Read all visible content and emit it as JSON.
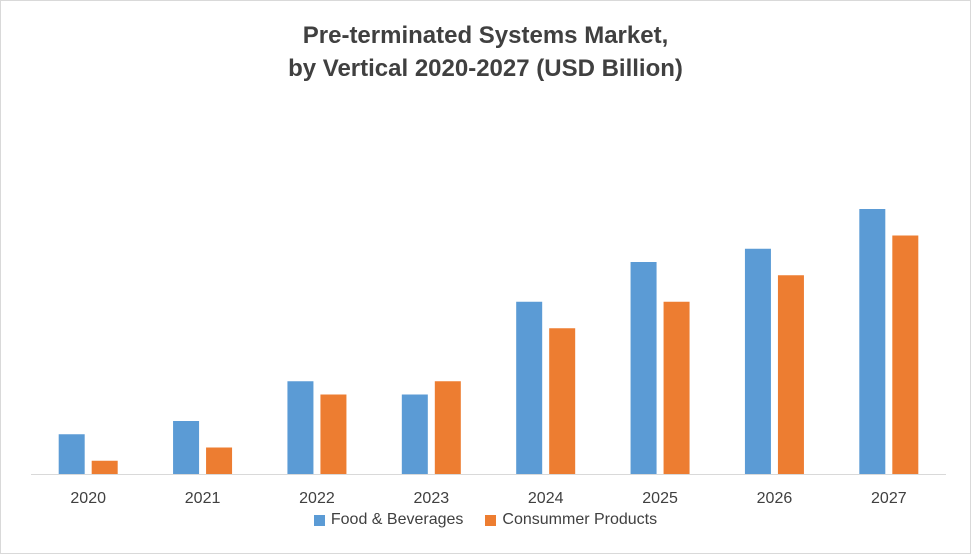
{
  "chart_data": {
    "type": "bar",
    "title_line1": "Pre-terminated Systems Market,",
    "title_line2": "by Vertical 2020-2027 (USD Billion)",
    "xlabel": "",
    "ylabel": "",
    "categories": [
      "2020",
      "2021",
      "2022",
      "2023",
      "2024",
      "2025",
      "2026",
      "2027"
    ],
    "ylim": [
      0,
      20
    ],
    "y_axis_visible": false,
    "grid": false,
    "legend_position": "bottom",
    "series": [
      {
        "name": "Food & Beverages",
        "color": "#5b9bd5",
        "values": [
          3.0,
          4.0,
          7.0,
          6.0,
          13.0,
          16.0,
          17.0,
          20.0
        ]
      },
      {
        "name": "Consummer Products",
        "color": "#ed7d31",
        "values": [
          1.0,
          2.0,
          6.0,
          7.0,
          11.0,
          13.0,
          15.0,
          18.0
        ]
      }
    ]
  }
}
